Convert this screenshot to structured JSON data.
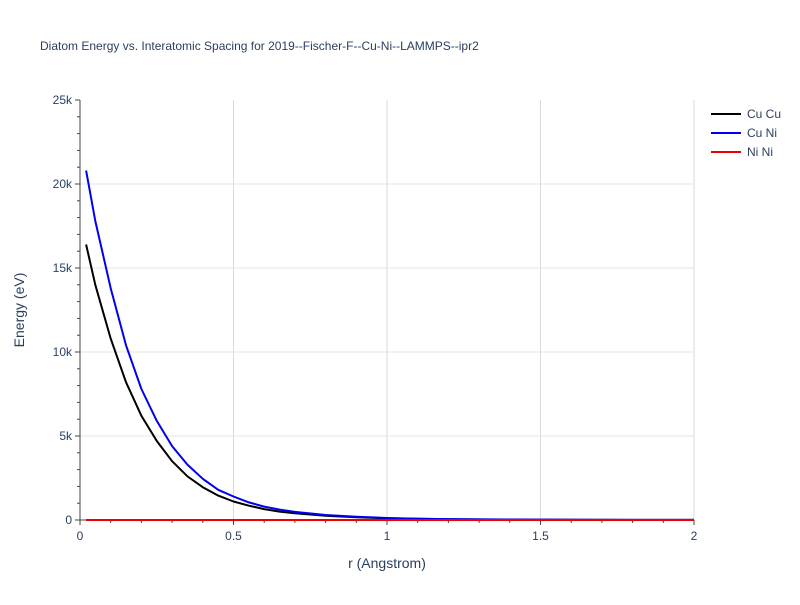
{
  "chart_data": {
    "type": "line",
    "title": "Diatom Energy vs. Interatomic Spacing for 2019--Fischer-F--Cu-Ni--LAMMPS--ipr2",
    "xlabel": "r (Angstrom)",
    "ylabel": "Energy (eV)",
    "xlim": [
      0,
      2
    ],
    "ylim": [
      0,
      25000
    ],
    "xticks": [
      0,
      0.5,
      1,
      1.5,
      2
    ],
    "xtick_labels": [
      "0",
      "0.5",
      "1",
      "1.5",
      "2"
    ],
    "yticks": [
      0,
      5000,
      10000,
      15000,
      20000,
      25000
    ],
    "ytick_labels": [
      "0",
      "5k",
      "10k",
      "15k",
      "20k",
      "25k"
    ],
    "grid": true,
    "legend_position": "top-right",
    "x": [
      0.02,
      0.05,
      0.1,
      0.15,
      0.2,
      0.25,
      0.3,
      0.35,
      0.4,
      0.45,
      0.5,
      0.55,
      0.6,
      0.65,
      0.7,
      0.8,
      0.9,
      1.0,
      1.1,
      1.2,
      1.4,
      1.6,
      1.8,
      2.0
    ],
    "series": [
      {
        "name": "Cu Cu",
        "color": "#000000",
        "values": [
          16400,
          14000,
          10800,
          8200,
          6200,
          4700,
          3500,
          2600,
          1950,
          1450,
          1100,
          850,
          650,
          500,
          400,
          250,
          160,
          100,
          70,
          50,
          25,
          12,
          6,
          3
        ]
      },
      {
        "name": "Cu Ni",
        "color": "#0000ee",
        "values": [
          20800,
          17800,
          13800,
          10400,
          7800,
          5900,
          4400,
          3300,
          2450,
          1800,
          1400,
          1050,
          800,
          620,
          480,
          300,
          190,
          120,
          80,
          55,
          28,
          14,
          7,
          3
        ]
      },
      {
        "name": "Ni Ni",
        "color": "#ee0000",
        "values": [
          0,
          0,
          0,
          0,
          0,
          0,
          0,
          0,
          0,
          0,
          0,
          0,
          0,
          0,
          0,
          0,
          0,
          0,
          0,
          0,
          0,
          0,
          0,
          0
        ]
      }
    ]
  }
}
